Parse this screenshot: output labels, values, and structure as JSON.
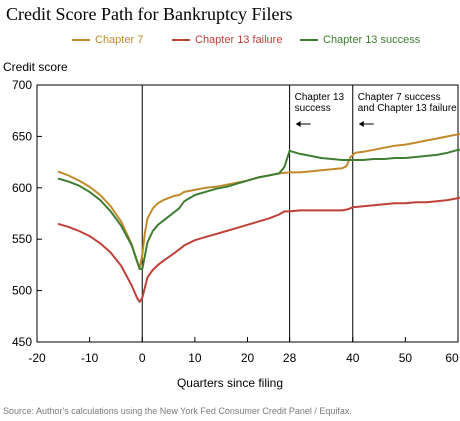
{
  "page": {
    "title": "Credit Score Path for Bankruptcy Filers",
    "source": "Source: Author's calculations using the New York Fed Consumer Credit Panel / Equifax."
  },
  "chart_data": {
    "type": "line",
    "title": "Credit Score Path for Bankruptcy Filers",
    "xlabel": "Quarters since filing",
    "ylabel": "Credit score",
    "xlim": [
      -20,
      60
    ],
    "ylim": [
      450,
      700
    ],
    "x_ticks": [
      -20,
      -10,
      0,
      10,
      20,
      28,
      40,
      50,
      60
    ],
    "y_ticks": [
      450,
      500,
      550,
      600,
      650,
      700
    ],
    "grid": false,
    "legend_position": "top",
    "vlines": [
      0,
      28,
      40
    ],
    "annotations": [
      {
        "id": "ch13",
        "lines": [
          "Chapter 13",
          "success"
        ],
        "arrow": "left",
        "x": 28
      },
      {
        "id": "ch7",
        "lines": [
          "Chapter 7 success",
          "and Chapter 13 failure"
        ],
        "arrow": "left",
        "x": 40
      }
    ],
    "series": [
      {
        "name": "Chapter 7",
        "color": "#c08a2b",
        "points": [
          [
            -16,
            616
          ],
          [
            -14,
            612
          ],
          [
            -12,
            607
          ],
          [
            -10,
            601
          ],
          [
            -8,
            593
          ],
          [
            -6,
            582
          ],
          [
            -4,
            567
          ],
          [
            -2,
            545
          ],
          [
            -1,
            528
          ],
          [
            -0.5,
            522
          ],
          [
            0,
            535
          ],
          [
            0.5,
            556
          ],
          [
            1,
            570
          ],
          [
            2,
            580
          ],
          [
            3,
            585
          ],
          [
            4,
            588
          ],
          [
            5,
            590
          ],
          [
            6,
            592
          ],
          [
            7,
            593
          ],
          [
            8,
            596
          ],
          [
            10,
            598
          ],
          [
            12,
            600
          ],
          [
            14,
            601
          ],
          [
            16,
            603
          ],
          [
            18,
            605
          ],
          [
            20,
            607
          ],
          [
            22,
            610
          ],
          [
            24,
            612
          ],
          [
            26,
            614
          ],
          [
            28,
            615
          ],
          [
            30,
            615
          ],
          [
            32,
            616
          ],
          [
            34,
            617
          ],
          [
            36,
            618
          ],
          [
            38,
            619
          ],
          [
            38.8,
            621
          ],
          [
            39.6,
            630
          ],
          [
            40.5,
            634
          ],
          [
            42,
            635
          ],
          [
            44,
            637
          ],
          [
            46,
            639
          ],
          [
            48,
            641
          ],
          [
            50,
            642
          ],
          [
            52,
            644
          ],
          [
            54,
            646
          ],
          [
            56,
            648
          ],
          [
            58,
            650
          ],
          [
            60,
            652
          ],
          [
            61,
            653
          ]
        ]
      },
      {
        "name": "Chapter 13 failure",
        "color": "#c0403a",
        "points": [
          [
            -16,
            565
          ],
          [
            -14,
            562
          ],
          [
            -12,
            558
          ],
          [
            -10,
            553
          ],
          [
            -8,
            546
          ],
          [
            -6,
            537
          ],
          [
            -4,
            524
          ],
          [
            -2,
            505
          ],
          [
            -1,
            493
          ],
          [
            -0.5,
            489
          ],
          [
            0,
            493
          ],
          [
            0.5,
            503
          ],
          [
            1,
            513
          ],
          [
            2,
            520
          ],
          [
            3,
            525
          ],
          [
            4,
            529
          ],
          [
            6,
            536
          ],
          [
            8,
            544
          ],
          [
            10,
            549
          ],
          [
            12,
            552
          ],
          [
            14,
            555
          ],
          [
            16,
            558
          ],
          [
            18,
            561
          ],
          [
            20,
            564
          ],
          [
            22,
            567
          ],
          [
            24,
            570
          ],
          [
            26,
            574
          ],
          [
            27,
            577
          ],
          [
            28,
            577
          ],
          [
            30,
            578
          ],
          [
            32,
            578
          ],
          [
            34,
            578
          ],
          [
            36,
            578
          ],
          [
            38,
            578
          ],
          [
            39,
            579
          ],
          [
            40,
            581
          ],
          [
            42,
            582
          ],
          [
            44,
            583
          ],
          [
            46,
            584
          ],
          [
            48,
            585
          ],
          [
            50,
            585
          ],
          [
            52,
            586
          ],
          [
            54,
            586
          ],
          [
            56,
            587
          ],
          [
            58,
            588
          ],
          [
            60,
            590
          ],
          [
            61,
            591
          ]
        ]
      },
      {
        "name": "Chapter 13 success",
        "color": "#3f7d33",
        "points": [
          [
            -16,
            609
          ],
          [
            -14,
            606
          ],
          [
            -12,
            602
          ],
          [
            -10,
            596
          ],
          [
            -8,
            588
          ],
          [
            -6,
            577
          ],
          [
            -4,
            563
          ],
          [
            -2,
            544
          ],
          [
            -1,
            529
          ],
          [
            -0.5,
            521
          ],
          [
            0,
            521
          ],
          [
            0.5,
            534
          ],
          [
            1,
            547
          ],
          [
            2,
            558
          ],
          [
            3,
            564
          ],
          [
            4,
            568
          ],
          [
            5,
            572
          ],
          [
            6,
            576
          ],
          [
            7,
            580
          ],
          [
            8,
            587
          ],
          [
            10,
            593
          ],
          [
            12,
            596
          ],
          [
            14,
            599
          ],
          [
            16,
            601
          ],
          [
            18,
            604
          ],
          [
            20,
            607
          ],
          [
            22,
            610
          ],
          [
            24,
            612
          ],
          [
            26,
            614
          ],
          [
            27,
            620
          ],
          [
            28,
            636
          ],
          [
            30,
            633
          ],
          [
            32,
            631
          ],
          [
            34,
            629
          ],
          [
            36,
            628
          ],
          [
            38,
            627
          ],
          [
            40,
            627
          ],
          [
            42,
            627
          ],
          [
            44,
            628
          ],
          [
            46,
            628
          ],
          [
            48,
            629
          ],
          [
            50,
            629
          ],
          [
            52,
            630
          ],
          [
            54,
            631
          ],
          [
            56,
            632
          ],
          [
            58,
            634
          ],
          [
            60,
            637
          ],
          [
            61,
            637
          ]
        ]
      }
    ]
  }
}
